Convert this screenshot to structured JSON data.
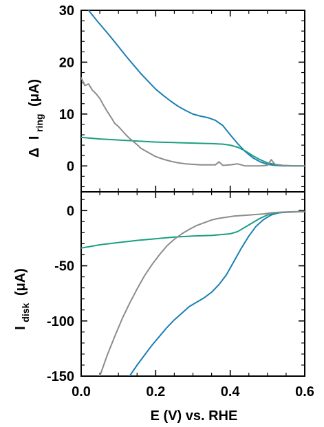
{
  "chart_data": [
    {
      "type": "line",
      "panel": "top",
      "ylabel": {
        "symbol": "Δ",
        "main": "I",
        "sub": "ring",
        "unit": "(μA)"
      },
      "xlim": [
        0,
        0.6
      ],
      "ylim": [
        -5,
        30
      ],
      "yticks": [
        0,
        10,
        20,
        30
      ],
      "yticklabels": [
        "0",
        "10",
        "20",
        "30"
      ],
      "yminor_step": 2,
      "series": [
        {
          "color": "#1a7fb5",
          "x": [
            0.02,
            0.04,
            0.06,
            0.08,
            0.1,
            0.12,
            0.14,
            0.16,
            0.18,
            0.2,
            0.22,
            0.24,
            0.26,
            0.28,
            0.3,
            0.32,
            0.34,
            0.36,
            0.38,
            0.4,
            0.42,
            0.44,
            0.46,
            0.48,
            0.5,
            0.52,
            0.54,
            0.56,
            0.58,
            0.6
          ],
          "y": [
            30,
            28.2,
            26.5,
            24.8,
            23.0,
            21.2,
            19.5,
            17.8,
            16.3,
            14.8,
            13.6,
            12.5,
            11.5,
            10.7,
            10.0,
            9.6,
            9.3,
            8.8,
            7.8,
            6.0,
            4.3,
            2.8,
            1.6,
            0.8,
            0.3,
            0.1,
            0.0,
            0.0,
            0.0,
            0.0
          ]
        },
        {
          "color": "#1a9e82",
          "x": [
            0.0,
            0.05,
            0.1,
            0.15,
            0.2,
            0.25,
            0.3,
            0.35,
            0.38,
            0.4,
            0.42,
            0.44,
            0.46,
            0.48,
            0.5,
            0.52,
            0.54,
            0.56,
            0.58,
            0.6
          ],
          "y": [
            5.5,
            5.2,
            5.0,
            4.8,
            4.6,
            4.5,
            4.4,
            4.3,
            4.2,
            4.0,
            3.6,
            2.9,
            2.0,
            1.2,
            0.6,
            0.3,
            0.1,
            0.05,
            0.0,
            0.0
          ]
        },
        {
          "color": "#8c8c8c",
          "x": [
            0.0,
            0.01,
            0.02,
            0.03,
            0.04,
            0.05,
            0.06,
            0.07,
            0.08,
            0.09,
            0.1,
            0.11,
            0.12,
            0.13,
            0.14,
            0.15,
            0.16,
            0.18,
            0.2,
            0.22,
            0.24,
            0.26,
            0.28,
            0.3,
            0.32,
            0.34,
            0.36,
            0.37,
            0.38,
            0.4,
            0.42,
            0.44,
            0.46,
            0.48,
            0.5,
            0.51,
            0.52,
            0.54,
            0.56,
            0.58,
            0.6
          ],
          "y": [
            17,
            15.5,
            15.8,
            14.6,
            13.9,
            13.0,
            11.7,
            10.5,
            9.4,
            8.2,
            7.6,
            6.8,
            6.0,
            5.3,
            4.7,
            4.1,
            3.4,
            2.6,
            1.8,
            1.3,
            0.9,
            0.6,
            0.4,
            0.3,
            0.2,
            0.2,
            0.2,
            0.8,
            0.1,
            0.2,
            0.4,
            0.0,
            0.0,
            0.0,
            0.1,
            1.2,
            0.3,
            0.1,
            0.0,
            0.0,
            0.0
          ]
        }
      ]
    },
    {
      "type": "line",
      "panel": "bottom",
      "ylabel": {
        "main": "I",
        "sub": "disk",
        "unit": "(μA)"
      },
      "xlabel": "E (V) vs. RHE",
      "xlim": [
        0,
        0.6
      ],
      "ylim": [
        -150,
        17
      ],
      "xticks": [
        0.0,
        0.2,
        0.4,
        0.6
      ],
      "xticklabels": [
        "0.0",
        "0.2",
        "0.4",
        "0.6"
      ],
      "xminor_step": 0.05,
      "yticks": [
        0,
        -50,
        -100,
        -150
      ],
      "yticklabels": [
        "0",
        "-50",
        "-100",
        "-150"
      ],
      "yminor_step": 10,
      "series": [
        {
          "color": "#1a7fb5",
          "x": [
            0.13,
            0.15,
            0.17,
            0.19,
            0.21,
            0.23,
            0.25,
            0.27,
            0.29,
            0.31,
            0.33,
            0.35,
            0.37,
            0.39,
            0.41,
            0.43,
            0.45,
            0.47,
            0.49,
            0.51,
            0.53,
            0.55,
            0.57,
            0.59,
            0.6
          ],
          "y": [
            -150,
            -140,
            -131,
            -122,
            -114,
            -106,
            -99,
            -93,
            -87,
            -83,
            -79,
            -74,
            -67,
            -58,
            -46,
            -34,
            -23,
            -14,
            -8,
            -4,
            -2,
            -1.5,
            -1.2,
            -1,
            -1
          ]
        },
        {
          "color": "#1a9e82",
          "x": [
            0.0,
            0.05,
            0.1,
            0.15,
            0.2,
            0.25,
            0.3,
            0.35,
            0.4,
            0.42,
            0.44,
            0.46,
            0.48,
            0.5,
            0.52,
            0.54,
            0.56,
            0.58,
            0.6
          ],
          "y": [
            -34,
            -31,
            -29,
            -27,
            -25.5,
            -24,
            -23,
            -22.5,
            -21,
            -19,
            -15,
            -11,
            -7,
            -4,
            -2.5,
            -1.5,
            -1.2,
            -1,
            -1
          ]
        },
        {
          "color": "#8c8c8c",
          "x": [
            0.05,
            0.07,
            0.09,
            0.11,
            0.13,
            0.15,
            0.17,
            0.19,
            0.21,
            0.23,
            0.25,
            0.27,
            0.29,
            0.31,
            0.33,
            0.35,
            0.37,
            0.39,
            0.41,
            0.43,
            0.45,
            0.47,
            0.49,
            0.51,
            0.53,
            0.55,
            0.57,
            0.6
          ],
          "y": [
            -150,
            -131,
            -114,
            -98,
            -84,
            -71,
            -59,
            -49,
            -40,
            -32,
            -26,
            -21,
            -17,
            -13.5,
            -11,
            -8.5,
            -7,
            -6,
            -5,
            -4.5,
            -4,
            -3.5,
            -3,
            -2,
            -1.5,
            -1.2,
            -1,
            -1
          ]
        }
      ]
    }
  ]
}
